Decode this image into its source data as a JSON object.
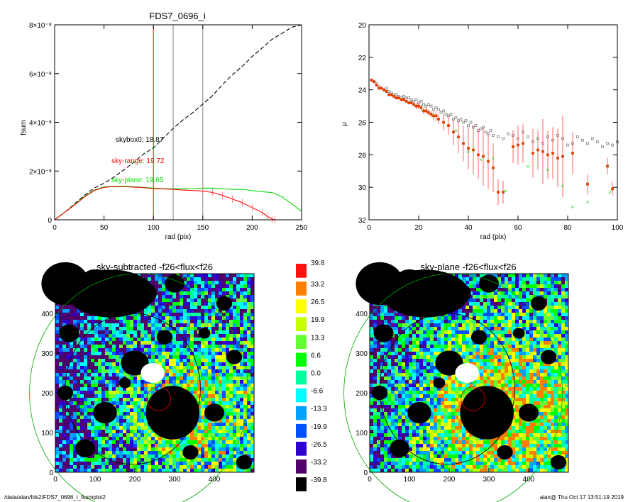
{
  "footer": {
    "path": "/data/alan/fds2/FDS7_0696_i_fsumplot2",
    "stamp": "alan@  Thu Oct 17 13:51:19 2019"
  },
  "chart_data": [
    {
      "type": "line",
      "title": "FDS7_0696_i",
      "xlabel": "rad (pix)",
      "ylabel": "fsum",
      "xlim": [
        0,
        250
      ],
      "ylim": [
        0,
        8e-08
      ],
      "x_ticks": [
        "0",
        "50",
        "100",
        "150",
        "200",
        "250"
      ],
      "y_ticks": [
        "0",
        "2×10⁻⁸",
        "4×10⁻⁸",
        "6×10⁻⁸",
        "8×10⁻⁸"
      ],
      "y_tick_values": [
        0,
        2e-08,
        4e-08,
        6e-08,
        8e-08
      ],
      "vlines": [
        {
          "x": 100,
          "color": "#ff0000"
        },
        {
          "x": 120,
          "color": "#808080"
        },
        {
          "x": 150,
          "color": "#808080"
        }
      ],
      "annotations": [
        {
          "text": "skybox0: 18.87",
          "color": "#000000",
          "x": 62,
          "y": 3.2e-08
        },
        {
          "text": "sky-range: 19.72",
          "color": "#ff0000",
          "x": 58,
          "y": 2.4e-08
        },
        {
          "text": "sky-plane: 19.65",
          "color": "#00dd00",
          "x": 58,
          "y": 1.5e-08
        }
      ],
      "series": [
        {
          "color": "#000000",
          "dash": true,
          "x": [
            0,
            10,
            20,
            30,
            40,
            50,
            60,
            70,
            80,
            90,
            100,
            110,
            120,
            130,
            140,
            150,
            160,
            170,
            180,
            190,
            200,
            210,
            220,
            230,
            240,
            250
          ],
          "y": [
            0,
            3e-09,
            6.5e-09,
            1e-08,
            1.3e-08,
            1.5e-08,
            1.75e-08,
            2.05e-08,
            2.35e-08,
            2.7e-08,
            2.95e-08,
            3.35e-08,
            3.75e-08,
            4.1e-08,
            4.4e-08,
            4.75e-08,
            5.1e-08,
            5.55e-08,
            5.95e-08,
            6.3e-08,
            6.7e-08,
            7.05e-08,
            7.4e-08,
            7.65e-08,
            7.9e-08,
            8e-08
          ]
        },
        {
          "color": "#00dd00",
          "x": [
            0,
            10,
            20,
            30,
            40,
            50,
            60,
            70,
            80,
            90,
            100,
            110,
            120,
            130,
            140,
            150,
            160,
            170,
            180,
            190,
            200,
            210,
            220,
            230,
            240,
            250
          ],
          "y": [
            0,
            3e-09,
            6.2e-09,
            9.5e-09,
            1.22e-08,
            1.35e-08,
            1.38e-08,
            1.38e-08,
            1.36e-08,
            1.33e-08,
            1.3e-08,
            1.28e-08,
            1.27e-08,
            1.27e-08,
            1.28e-08,
            1.3e-08,
            1.3e-08,
            1.28e-08,
            1.25e-08,
            1.25e-08,
            1.2e-08,
            1.15e-08,
            1.12e-08,
            9.5e-09,
            6.5e-09,
            3.5e-09
          ]
        },
        {
          "color": "#ff0000",
          "x": [
            0,
            10,
            20,
            30,
            40,
            50,
            60,
            70,
            80,
            90,
            100,
            110,
            120,
            130,
            140,
            150,
            160,
            170,
            180,
            190,
            200,
            210,
            215,
            220,
            223
          ],
          "y": [
            0,
            3e-09,
            6e-09,
            9.3e-09,
            1.2e-08,
            1.33e-08,
            1.37e-08,
            1.36e-08,
            1.34e-08,
            1.32e-08,
            1.28e-08,
            1.27e-08,
            1.25e-08,
            1.22e-08,
            1.2e-08,
            1.18e-08,
            1.12e-08,
            1e-08,
            8.5e-09,
            7e-09,
            5e-09,
            3e-09,
            1.5e-09,
            3e-10,
            0
          ]
        }
      ]
    },
    {
      "type": "scatter",
      "title": "",
      "xlabel": "",
      "ylabel": "μ",
      "xlim": [
        0,
        100
      ],
      "ylim": [
        32,
        20
      ],
      "x_ticks": [
        "0",
        "20",
        "40",
        "60",
        "80",
        "100"
      ],
      "y_ticks": [
        "20",
        "22",
        "24",
        "26",
        "28",
        "30",
        "32"
      ],
      "series": [
        {
          "color": "#808080",
          "marker": "square-open",
          "x": [
            1,
            2,
            3,
            4,
            5,
            6,
            7,
            8,
            9,
            10,
            11,
            12,
            13,
            14,
            15,
            16,
            17,
            18,
            19,
            20,
            21,
            22,
            23,
            24,
            25,
            26,
            27,
            28,
            29,
            30,
            31,
            32,
            33,
            34,
            35,
            36,
            37,
            38,
            39,
            40,
            41,
            42,
            43,
            44,
            45,
            46,
            47,
            48,
            49,
            50,
            52,
            54,
            56,
            58,
            60,
            62,
            64,
            66,
            68,
            70,
            72,
            74,
            76,
            78,
            80,
            82,
            84,
            86,
            88,
            90,
            92,
            94,
            96,
            98,
            100
          ],
          "y": [
            23.4,
            23.5,
            23.6,
            23.8,
            23.9,
            24.0,
            23.9,
            24.1,
            24.2,
            24.3,
            24.3,
            24.4,
            24.5,
            24.4,
            24.5,
            24.5,
            24.6,
            24.7,
            24.6,
            24.8,
            24.7,
            24.9,
            25.0,
            24.9,
            25.0,
            25.2,
            25.1,
            25.2,
            25.4,
            25.3,
            25.5,
            25.6,
            25.5,
            25.8,
            25.7,
            25.9,
            25.8,
            26.0,
            25.9,
            26.2,
            26.0,
            26.3,
            26.2,
            26.5,
            26.4,
            26.3,
            26.6,
            26.7,
            26.5,
            26.8,
            26.9,
            27.0,
            26.7,
            26.8,
            27.0,
            26.6,
            26.9,
            27.2,
            27.0,
            27.3,
            26.9,
            27.1,
            26.8,
            27.0,
            27.4,
            27.3,
            26.9,
            27.1,
            27.3,
            27.0,
            27.2,
            27.5,
            27.3,
            27.4,
            27.2
          ]
        },
        {
          "color": "#ff0000",
          "marker": "square-filled",
          "errorbars": true,
          "x": [
            1,
            2,
            3,
            4,
            5,
            6,
            7,
            8,
            9,
            10,
            11,
            12,
            13,
            14,
            15,
            16,
            17,
            18,
            19,
            20,
            21,
            22,
            23,
            24,
            25,
            26,
            27,
            28,
            30,
            32,
            34,
            36,
            38,
            40,
            42,
            44,
            46,
            48,
            50,
            52,
            54,
            58,
            60,
            62,
            66,
            68,
            70,
            72,
            74,
            76,
            78,
            82,
            88,
            96,
            98
          ],
          "y": [
            23.4,
            23.5,
            23.7,
            23.9,
            23.9,
            24.0,
            24.1,
            24.3,
            24.3,
            24.4,
            24.5,
            24.5,
            24.6,
            24.6,
            24.7,
            24.8,
            24.8,
            24.9,
            25.0,
            25.0,
            25.1,
            25.3,
            25.3,
            25.4,
            25.5,
            25.6,
            25.6,
            25.8,
            26.0,
            26.2,
            26.6,
            26.9,
            27.3,
            27.6,
            27.7,
            28.0,
            28.1,
            28.4,
            28.8,
            30.3,
            30.3,
            27.5,
            27.4,
            27.3,
            27.9,
            27.7,
            27.8,
            28.0,
            27.9,
            28.2,
            28.1,
            27.9,
            29.8,
            28.7,
            30.1
          ],
          "err": [
            0.1,
            0.1,
            0.1,
            0.1,
            0.1,
            0.1,
            0.1,
            0.1,
            0.1,
            0.1,
            0.1,
            0.1,
            0.1,
            0.1,
            0.1,
            0.1,
            0.1,
            0.1,
            0.2,
            0.2,
            0.2,
            0.2,
            0.2,
            0.2,
            0.2,
            0.3,
            0.3,
            0.3,
            0.5,
            0.6,
            0.8,
            1.0,
            1.1,
            1.3,
            1.5,
            1.5,
            1.8,
            1.7,
            1.5,
            0.8,
            0.7,
            1.0,
            1.2,
            1.2,
            1.5,
            1.2,
            2.0,
            1.5,
            1.6,
            1.8,
            2.5,
            1.3,
            0.6,
            0.5,
            0.4
          ]
        },
        {
          "color": "#00dd00",
          "marker": "x",
          "x": [
            35,
            40,
            45,
            50,
            55,
            64,
            72,
            78,
            82,
            88,
            97
          ],
          "y": [
            26.5,
            27.8,
            28.3,
            28.2,
            30.2,
            28.7,
            28.9,
            29.9,
            31.2,
            30.9,
            30.3
          ]
        }
      ]
    },
    {
      "type": "heatmap",
      "title": "sky-subtracted -f26<flux<f26",
      "xlabel": "",
      "ylabel": "",
      "xlim": [
        0,
        500
      ],
      "ylim": [
        0,
        500
      ],
      "x_ticks": [
        "0",
        "100",
        "200",
        "300",
        "400"
      ],
      "y_ticks": [
        "0",
        "100",
        "200",
        "300",
        "400"
      ],
      "colorbar": {
        "labels": [
          "39.8",
          "33.2",
          "26.5",
          "19.9",
          "13.3",
          "6.6",
          "0.0",
          "-6.6",
          "-13.3",
          "-19.9",
          "-26.5",
          "-33.2",
          "-39.8"
        ],
        "colors": [
          "#ff1010",
          "#ff8000",
          "#ffff00",
          "#c8ff00",
          "#66ff33",
          "#00ff00",
          "#00ff9f",
          "#00ffff",
          "#00a0ff",
          "#0050ff",
          "#3000d0",
          "#50006a",
          "#000000"
        ]
      }
    },
    {
      "type": "heatmap",
      "title": "sky-plane -f26<flux<f26",
      "xlabel": "",
      "ylabel": "",
      "xlim": [
        0,
        500
      ],
      "ylim": [
        0,
        500
      ],
      "x_ticks": [
        "0",
        "100",
        "200",
        "300",
        "400"
      ],
      "y_ticks": [
        "0",
        "100",
        "200",
        "300",
        "400"
      ]
    }
  ]
}
